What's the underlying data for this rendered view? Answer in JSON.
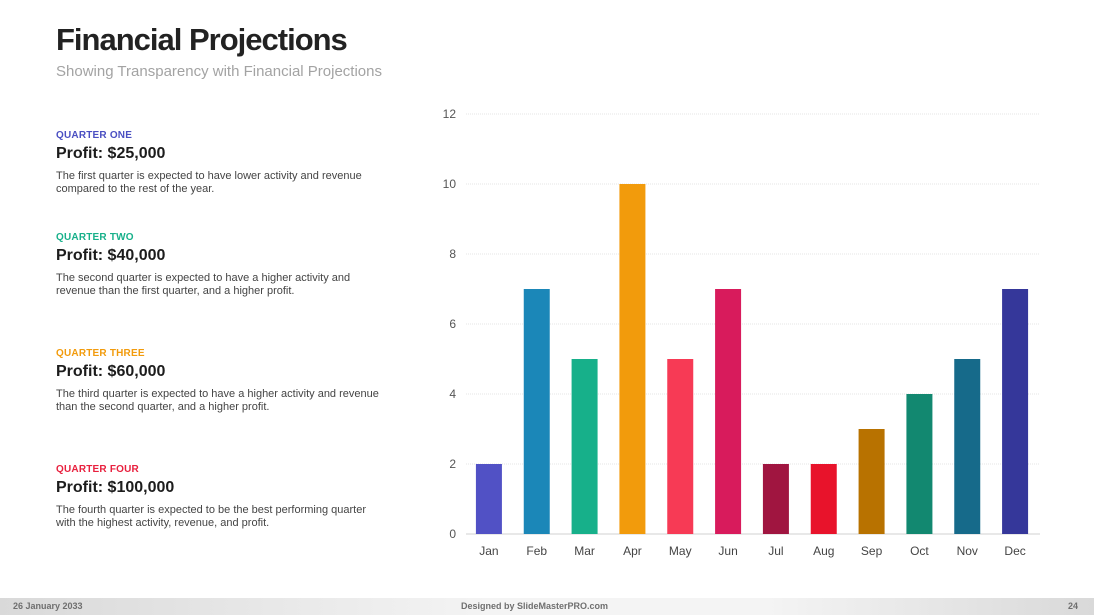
{
  "slide": {
    "title": "Financial Projections",
    "subtitle": "Showing Transparency with Financial Projections"
  },
  "quarters": [
    {
      "label": "QUARTER ONE",
      "label_color": "#4a4fc2",
      "profit": "Profit: $25,000",
      "description": "The first quarter is expected to have lower activity and revenue compared to the rest of the year."
    },
    {
      "label": "QUARTER TWO",
      "label_color": "#17b08a",
      "profit": "Profit: $40,000",
      "description": "The second quarter is expected to have a higher activity and revenue than the first quarter, and a higher profit."
    },
    {
      "label": "QUARTER THREE",
      "label_color": "#f29b0c",
      "profit": "Profit: $60,000",
      "description": "The third quarter is expected to have a higher activity and revenue than the second quarter, and a higher profit."
    },
    {
      "label": "QUARTER FOUR",
      "label_color": "#e8203e",
      "profit": "Profit: $100,000",
      "description": "The fourth quarter is expected to be the best performing quarter with the highest activity, revenue, and profit."
    }
  ],
  "chart_data": {
    "type": "bar",
    "title": "",
    "xlabel": "",
    "ylabel": "",
    "categories": [
      "Jan",
      "Feb",
      "Mar",
      "Apr",
      "May",
      "Jun",
      "Jul",
      "Aug",
      "Sep",
      "Oct",
      "Nov",
      "Dec"
    ],
    "values": [
      2,
      7,
      5,
      10,
      5,
      7,
      2,
      2,
      3,
      4,
      5,
      7
    ],
    "colors": [
      "#5151c5",
      "#1b87b8",
      "#17b08a",
      "#f29b0c",
      "#f73a55",
      "#d81b5c",
      "#a01540",
      "#e8132b",
      "#b87200",
      "#128870",
      "#166a8a",
      "#35379a"
    ],
    "ylim": [
      0,
      12
    ],
    "yticks": [
      0,
      2,
      4,
      6,
      8,
      10,
      12
    ],
    "grid": true,
    "legend": "none"
  },
  "footer": {
    "date": "26 January 2033",
    "credit": "Designed by SlideMasterPRO.com",
    "page": "24"
  }
}
